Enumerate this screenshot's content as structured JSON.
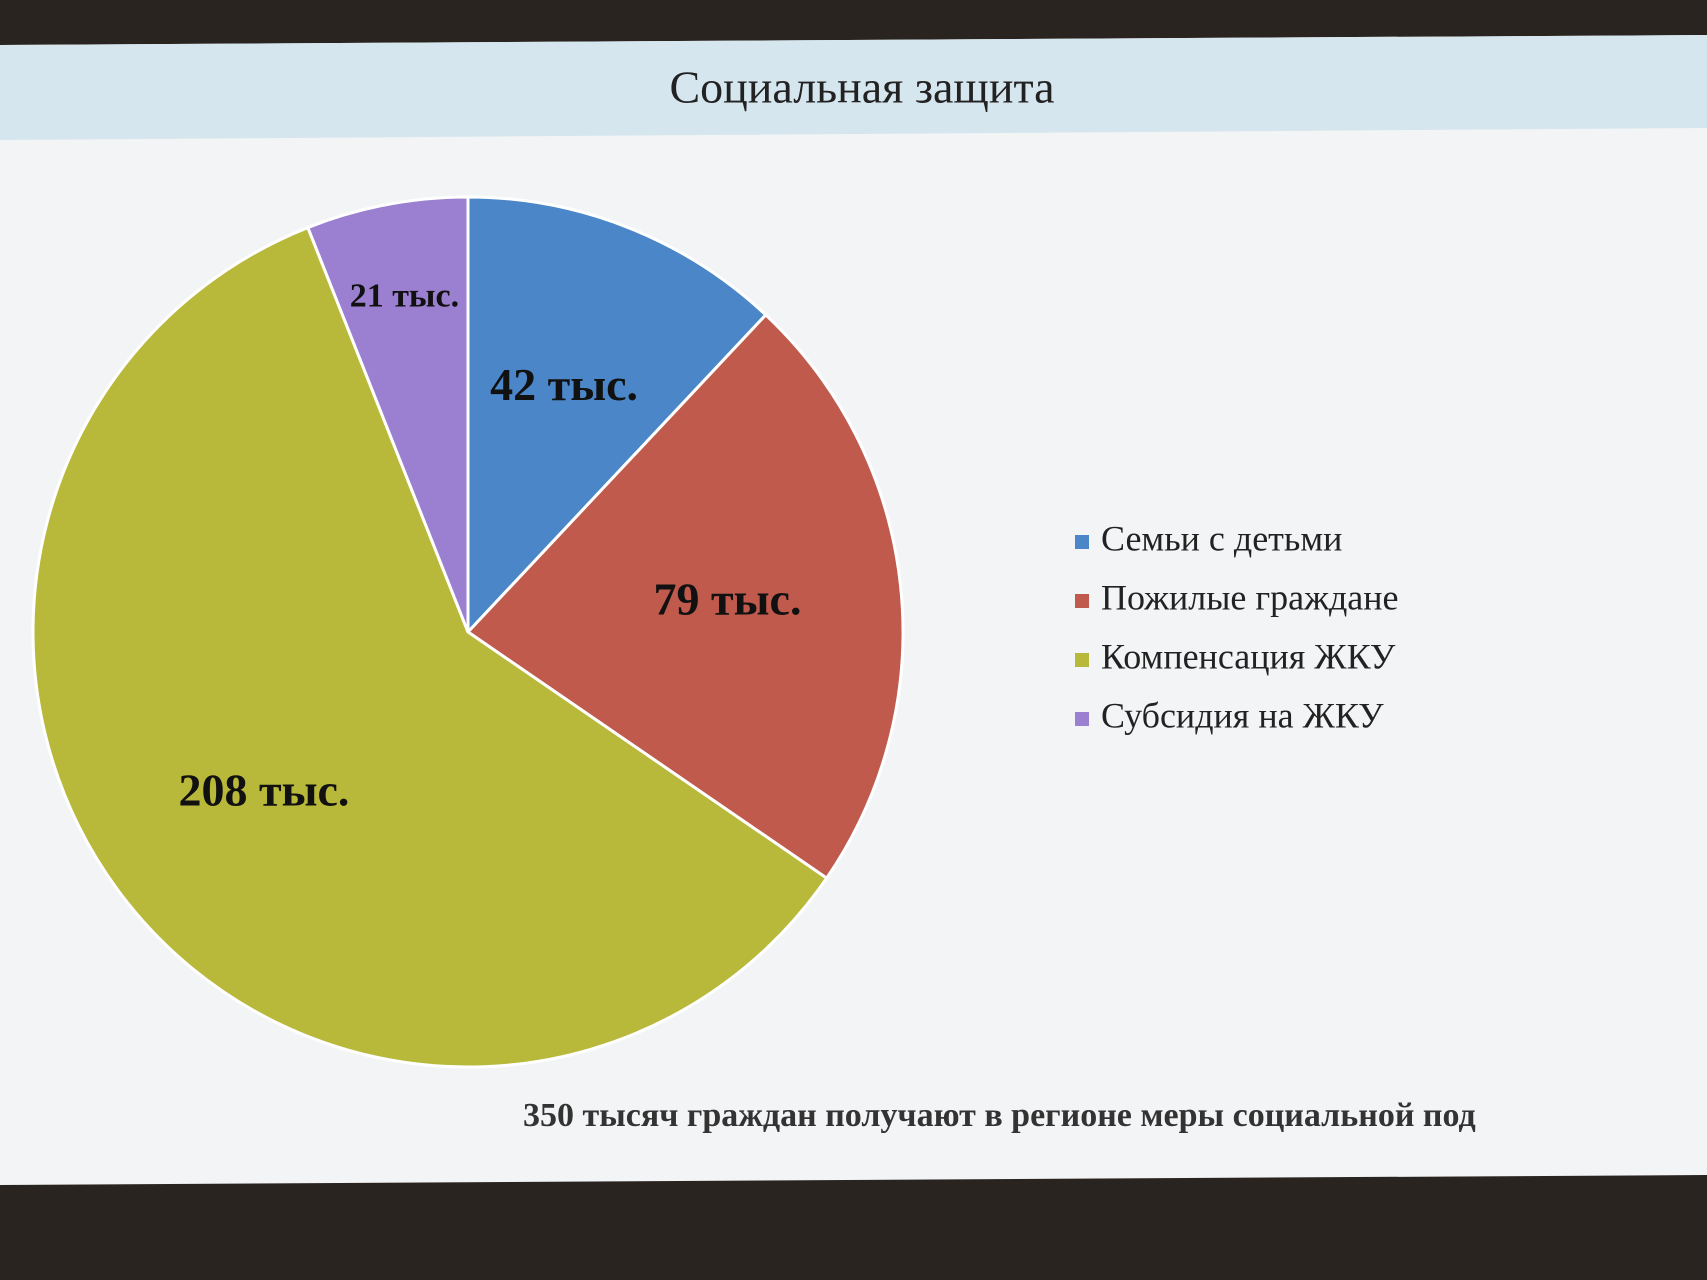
{
  "chart_data": {
    "type": "pie",
    "title": "Социальная защита",
    "categories": [
      "Семьи с детьми",
      "Пожилые граждане",
      "Компенсация ЖКУ",
      "Субсидия на ЖКУ"
    ],
    "values": [
      42,
      79,
      208,
      21
    ],
    "value_labels": [
      "42 тыс.",
      "79 тыс.",
      "208 тыс.",
      "21 тыс."
    ],
    "colors": [
      "#4a86c8",
      "#bf5a4c",
      "#b8b83a",
      "#9b7fd0"
    ],
    "legend": "right",
    "note": "350 тысяч граждан получают в регионе меры социальной под"
  }
}
